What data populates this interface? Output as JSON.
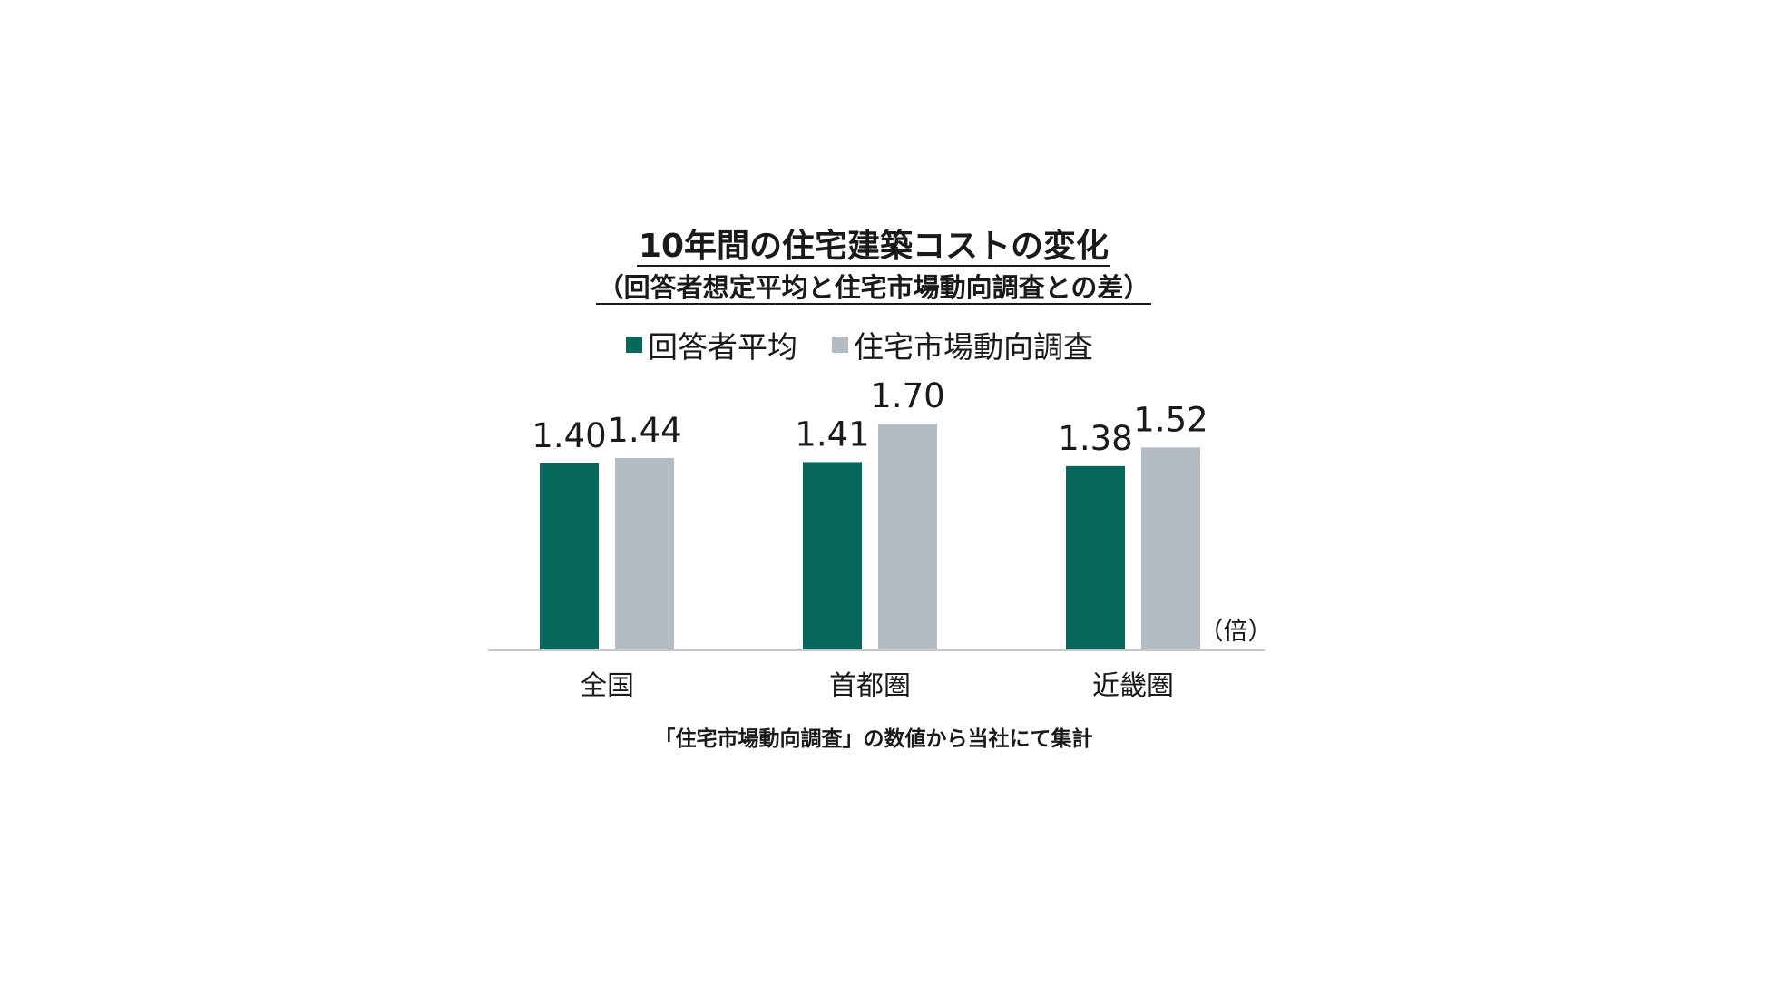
{
  "chart_data": {
    "type": "bar",
    "title": "10年間の住宅建築コストの変化",
    "subtitle": "（回答者想定平均と住宅市場動向調査との差）",
    "unit_label": "（倍）",
    "categories": [
      "全国",
      "首都圏",
      "近畿圏"
    ],
    "series": [
      {
        "name": "回答者平均",
        "color": "#05685a",
        "values": [
          1.4,
          1.41,
          1.38
        ],
        "labels": [
          "1.40",
          "1.41",
          "1.38"
        ]
      },
      {
        "name": "住宅市場動向調査",
        "color": "#b3bcc3",
        "values": [
          1.44,
          1.7,
          1.52
        ],
        "labels": [
          "1.44",
          "1.70",
          "1.52"
        ]
      }
    ],
    "ylim": [
      0,
      1.9
    ],
    "grid": false,
    "legend_position": "top",
    "source_note": "「住宅市場動向調査」の数値から当社にて集計"
  }
}
